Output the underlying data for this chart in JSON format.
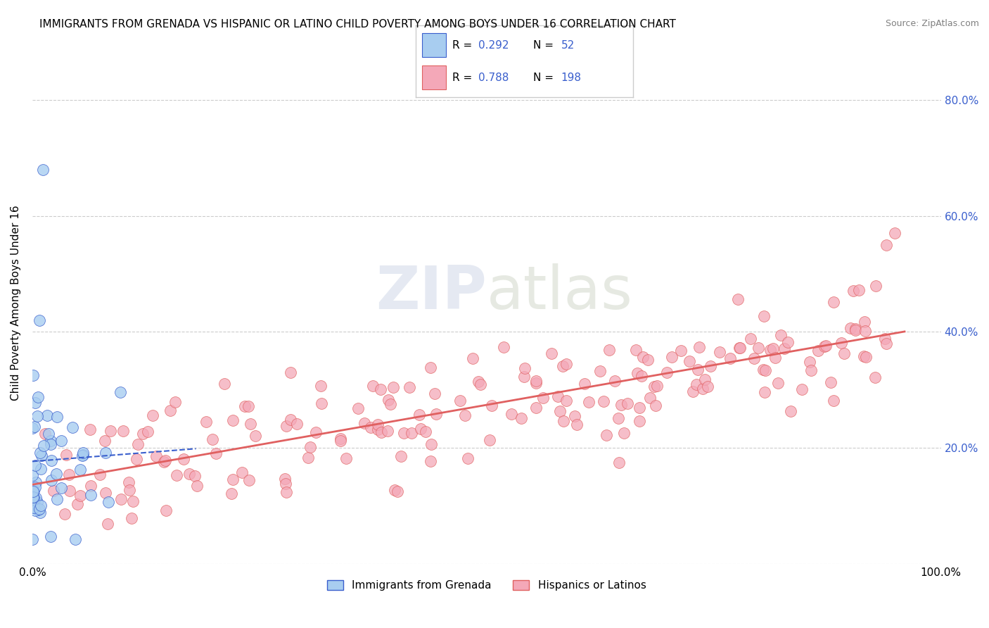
{
  "title": "IMMIGRANTS FROM GRENADA VS HISPANIC OR LATINO CHILD POVERTY AMONG BOYS UNDER 16 CORRELATION CHART",
  "source": "Source: ZipAtlas.com",
  "ylabel": "Child Poverty Among Boys Under 16",
  "xlim": [
    0.0,
    1.0
  ],
  "ylim": [
    0.0,
    0.9
  ],
  "r_blue": 0.292,
  "n_blue": 52,
  "r_pink": 0.788,
  "n_pink": 198,
  "blue_color": "#a8cdf0",
  "pink_color": "#f4a8b8",
  "blue_line_color": "#3a5fcd",
  "pink_line_color": "#e06060",
  "background_color": "#ffffff",
  "watermark_zip": "ZIP",
  "watermark_atlas": "atlas"
}
